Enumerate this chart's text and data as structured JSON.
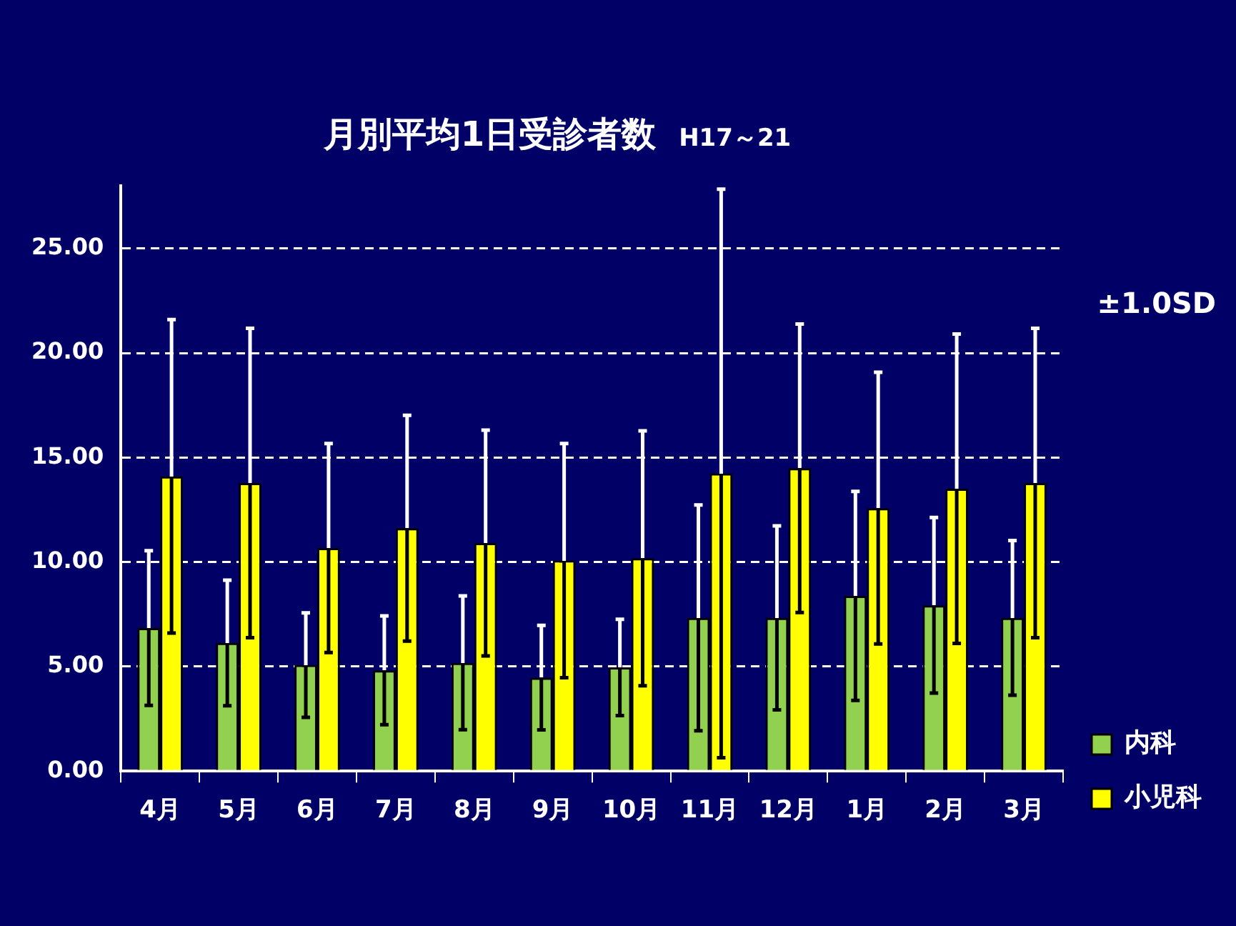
{
  "chart_data": {
    "type": "bar",
    "title": "月別平均1日受診者数",
    "subtitle": "H17～21",
    "categories": [
      "4月",
      "5月",
      "6月",
      "7月",
      "8月",
      "9月",
      "10月",
      "11月",
      "12月",
      "1月",
      "2月",
      "3月"
    ],
    "series": [
      {
        "name": "内科",
        "color": "#92d050",
        "values": [
          6.84,
          6.13,
          5.07,
          4.82,
          5.18,
          4.47,
          4.96,
          7.33,
          7.33,
          8.38,
          7.93,
          7.33
        ],
        "errors": [
          3.7,
          3.0,
          2.5,
          2.6,
          3.2,
          2.5,
          2.3,
          5.4,
          4.4,
          5.0,
          4.2,
          3.7
        ]
      },
      {
        "name": "小児科",
        "color": "#ffff00",
        "values": [
          14.1,
          13.78,
          10.67,
          11.62,
          10.91,
          10.07,
          10.18,
          14.24,
          14.49,
          12.58,
          13.51,
          13.78
        ],
        "errors": [
          7.5,
          7.4,
          5.0,
          5.4,
          5.4,
          5.6,
          6.1,
          13.6,
          6.9,
          6.5,
          7.4,
          7.4
        ]
      }
    ],
    "ylim": [
      0,
      28
    ],
    "yticks": [
      {
        "value": 0,
        "label": "0.00"
      },
      {
        "value": 5,
        "label": "5.00"
      },
      {
        "value": 10,
        "label": "10.00"
      },
      {
        "value": 15,
        "label": "15.00"
      },
      {
        "value": 20,
        "label": "20.00"
      },
      {
        "value": 25,
        "label": "25.00"
      }
    ],
    "grid": "y",
    "legend": "bottom right",
    "annotations": [
      "±1.0SD"
    ]
  }
}
